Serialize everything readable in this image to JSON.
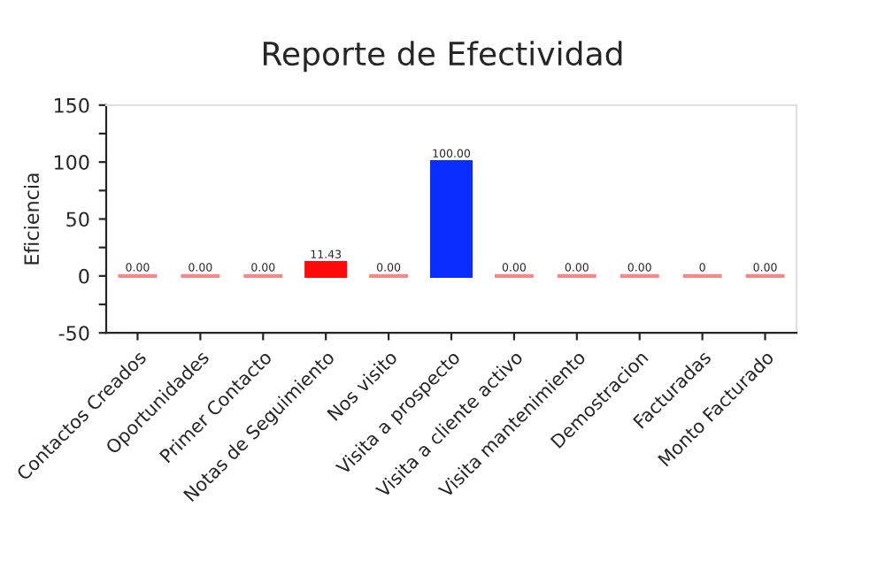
{
  "chart_data": {
    "type": "bar",
    "title": "Reporte de Efectividad",
    "ylabel": "Eficiencia",
    "categories": [
      "Contactos Creados",
      "Oportunidades",
      "Primer Contacto",
      "Notas de Seguimiento",
      "Nos visito",
      "Visita a prospecto",
      "Visita a cliente activo",
      "Visita mantenimiento",
      "Demostracion",
      "Facturadas",
      "Monto Facturado"
    ],
    "values": [
      0,
      0,
      0,
      11.43,
      0,
      100,
      0,
      0,
      0,
      0,
      0
    ],
    "colors": [
      "#f28a8a",
      "#f28a8a",
      "#f28a8a",
      "#ff0a0a",
      "#f28a8a",
      "#0a2eff",
      "#f28a8a",
      "#f28a8a",
      "#f28a8a",
      "#f28a8a",
      "#f28a8a"
    ],
    "value_labels": [
      "0.00",
      "0.00",
      "0.00",
      "11.43",
      "0.00",
      "100.00",
      "0.00",
      "0.00",
      "0.00",
      "0",
      "0.00"
    ],
    "ylim": [
      -50,
      150
    ],
    "yticks": [
      -50,
      {
        "value": -25,
        "label": null
      },
      0,
      {
        "value": 25,
        "label": null
      },
      50,
      {
        "value": 75,
        "label": null
      },
      100,
      {
        "value": 125,
        "label": null
      },
      150
    ],
    "grid": false,
    "legend": false
  }
}
